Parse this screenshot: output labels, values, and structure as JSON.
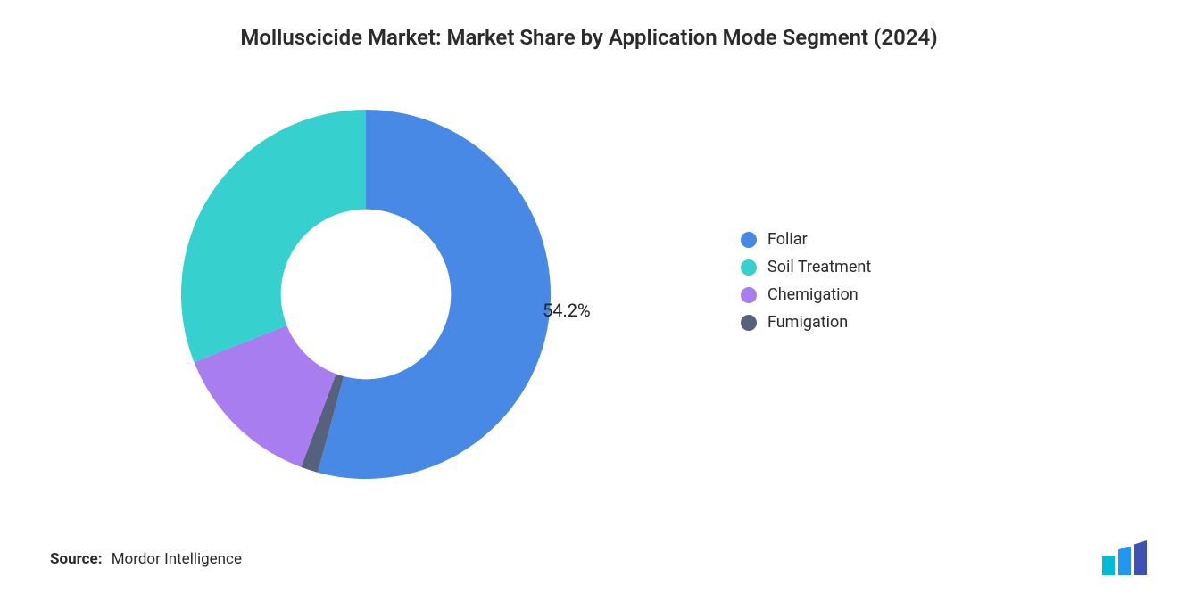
{
  "title": "Molluscicide Market: Market Share by Application Mode Segment (2024)",
  "chart": {
    "type": "donut",
    "background_color": "#ffffff",
    "inner_radius_ratio": 0.46,
    "start_angle_deg": -90,
    "direction": "clockwise",
    "slices": [
      {
        "label": "Foliar",
        "value": 54.2,
        "color": "#4789e4",
        "data_label": "54.2%",
        "show_label": true
      },
      {
        "label": "Fumigation",
        "value": 1.5,
        "color": "#56627c",
        "show_label": false
      },
      {
        "label": "Chemigation",
        "value": 13.3,
        "color": "#a77df0",
        "show_label": false
      },
      {
        "label": "Soil Treatment",
        "value": 31.0,
        "color": "#36d1cf",
        "show_label": false
      }
    ],
    "legend": {
      "order": [
        "Foliar",
        "Soil Treatment",
        "Chemigation",
        "Fumigation"
      ],
      "position": "right",
      "font_size_pt": 14,
      "text_color": "#2b2b2b"
    },
    "label_font_size_pt": 15,
    "label_color": "#222222"
  },
  "source": {
    "label": "Source:",
    "value": "Mordor Intelligence"
  },
  "logo": {
    "name": "mordor-intelligence-logo",
    "bars": [
      {
        "color": "#00bcd4",
        "height_ratio": 0.55
      },
      {
        "color": "#2196f3",
        "height_ratio": 0.8
      },
      {
        "color": "#3f51b5",
        "height_ratio": 1.0
      }
    ]
  }
}
